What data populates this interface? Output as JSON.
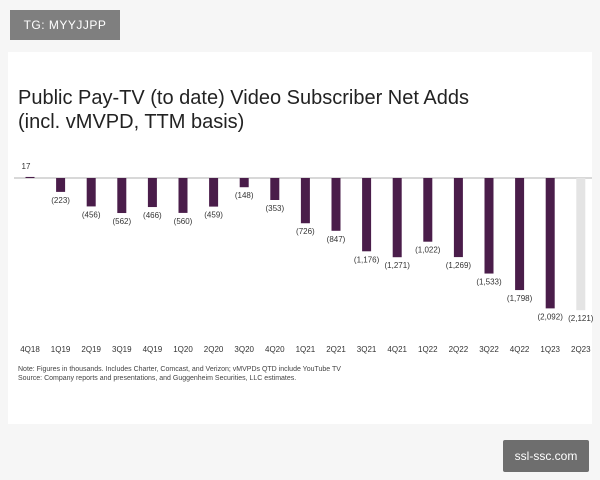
{
  "tag": {
    "text": "TG: MYYJJPP"
  },
  "watermark": {
    "text": "ssl-ssc.com"
  },
  "chart_data": {
    "type": "bar",
    "title_line1": "Public Pay-TV (to date) Video Subscriber Net Adds",
    "title_line2": "(incl. vMVPD, TTM basis)",
    "categories": [
      "4Q18",
      "1Q19",
      "2Q19",
      "3Q19",
      "4Q19",
      "1Q20",
      "2Q20",
      "3Q20",
      "4Q20",
      "1Q21",
      "2Q21",
      "3Q21",
      "4Q21",
      "1Q22",
      "2Q22",
      "3Q22",
      "4Q22",
      "1Q23",
      "2Q23"
    ],
    "values": [
      17,
      -223,
      -456,
      -562,
      -466,
      -560,
      -459,
      -148,
      -353,
      -726,
      -847,
      -1176,
      -1271,
      -1022,
      -1269,
      -1533,
      -1798,
      -2092,
      -2121
    ],
    "data_labels": [
      "17",
      "(223)",
      "(456)",
      "(562)",
      "(466)",
      "(560)",
      "(459)",
      "(148)",
      "(353)",
      "(726)",
      "(847)",
      "(1,176)",
      "(1,271)",
      "(1,022)",
      "(1,269)",
      "(1,533)",
      "(1,798)",
      "(2,092)",
      "(2,121)"
    ],
    "colors": {
      "bar": "#4a1d4a",
      "highlight": "#e4e4e4",
      "axis": "#999999"
    },
    "ylim": [
      -2150,
      20
    ],
    "grid": false,
    "legend": "none",
    "notes": [
      "Note: Figures in thousands. Includes Charter, Comcast, and Verizon; vMVPDs QTD include YouTube TV",
      "Source: Company reports and presentations, and Guggenheim Securities, LLC estimates."
    ]
  }
}
